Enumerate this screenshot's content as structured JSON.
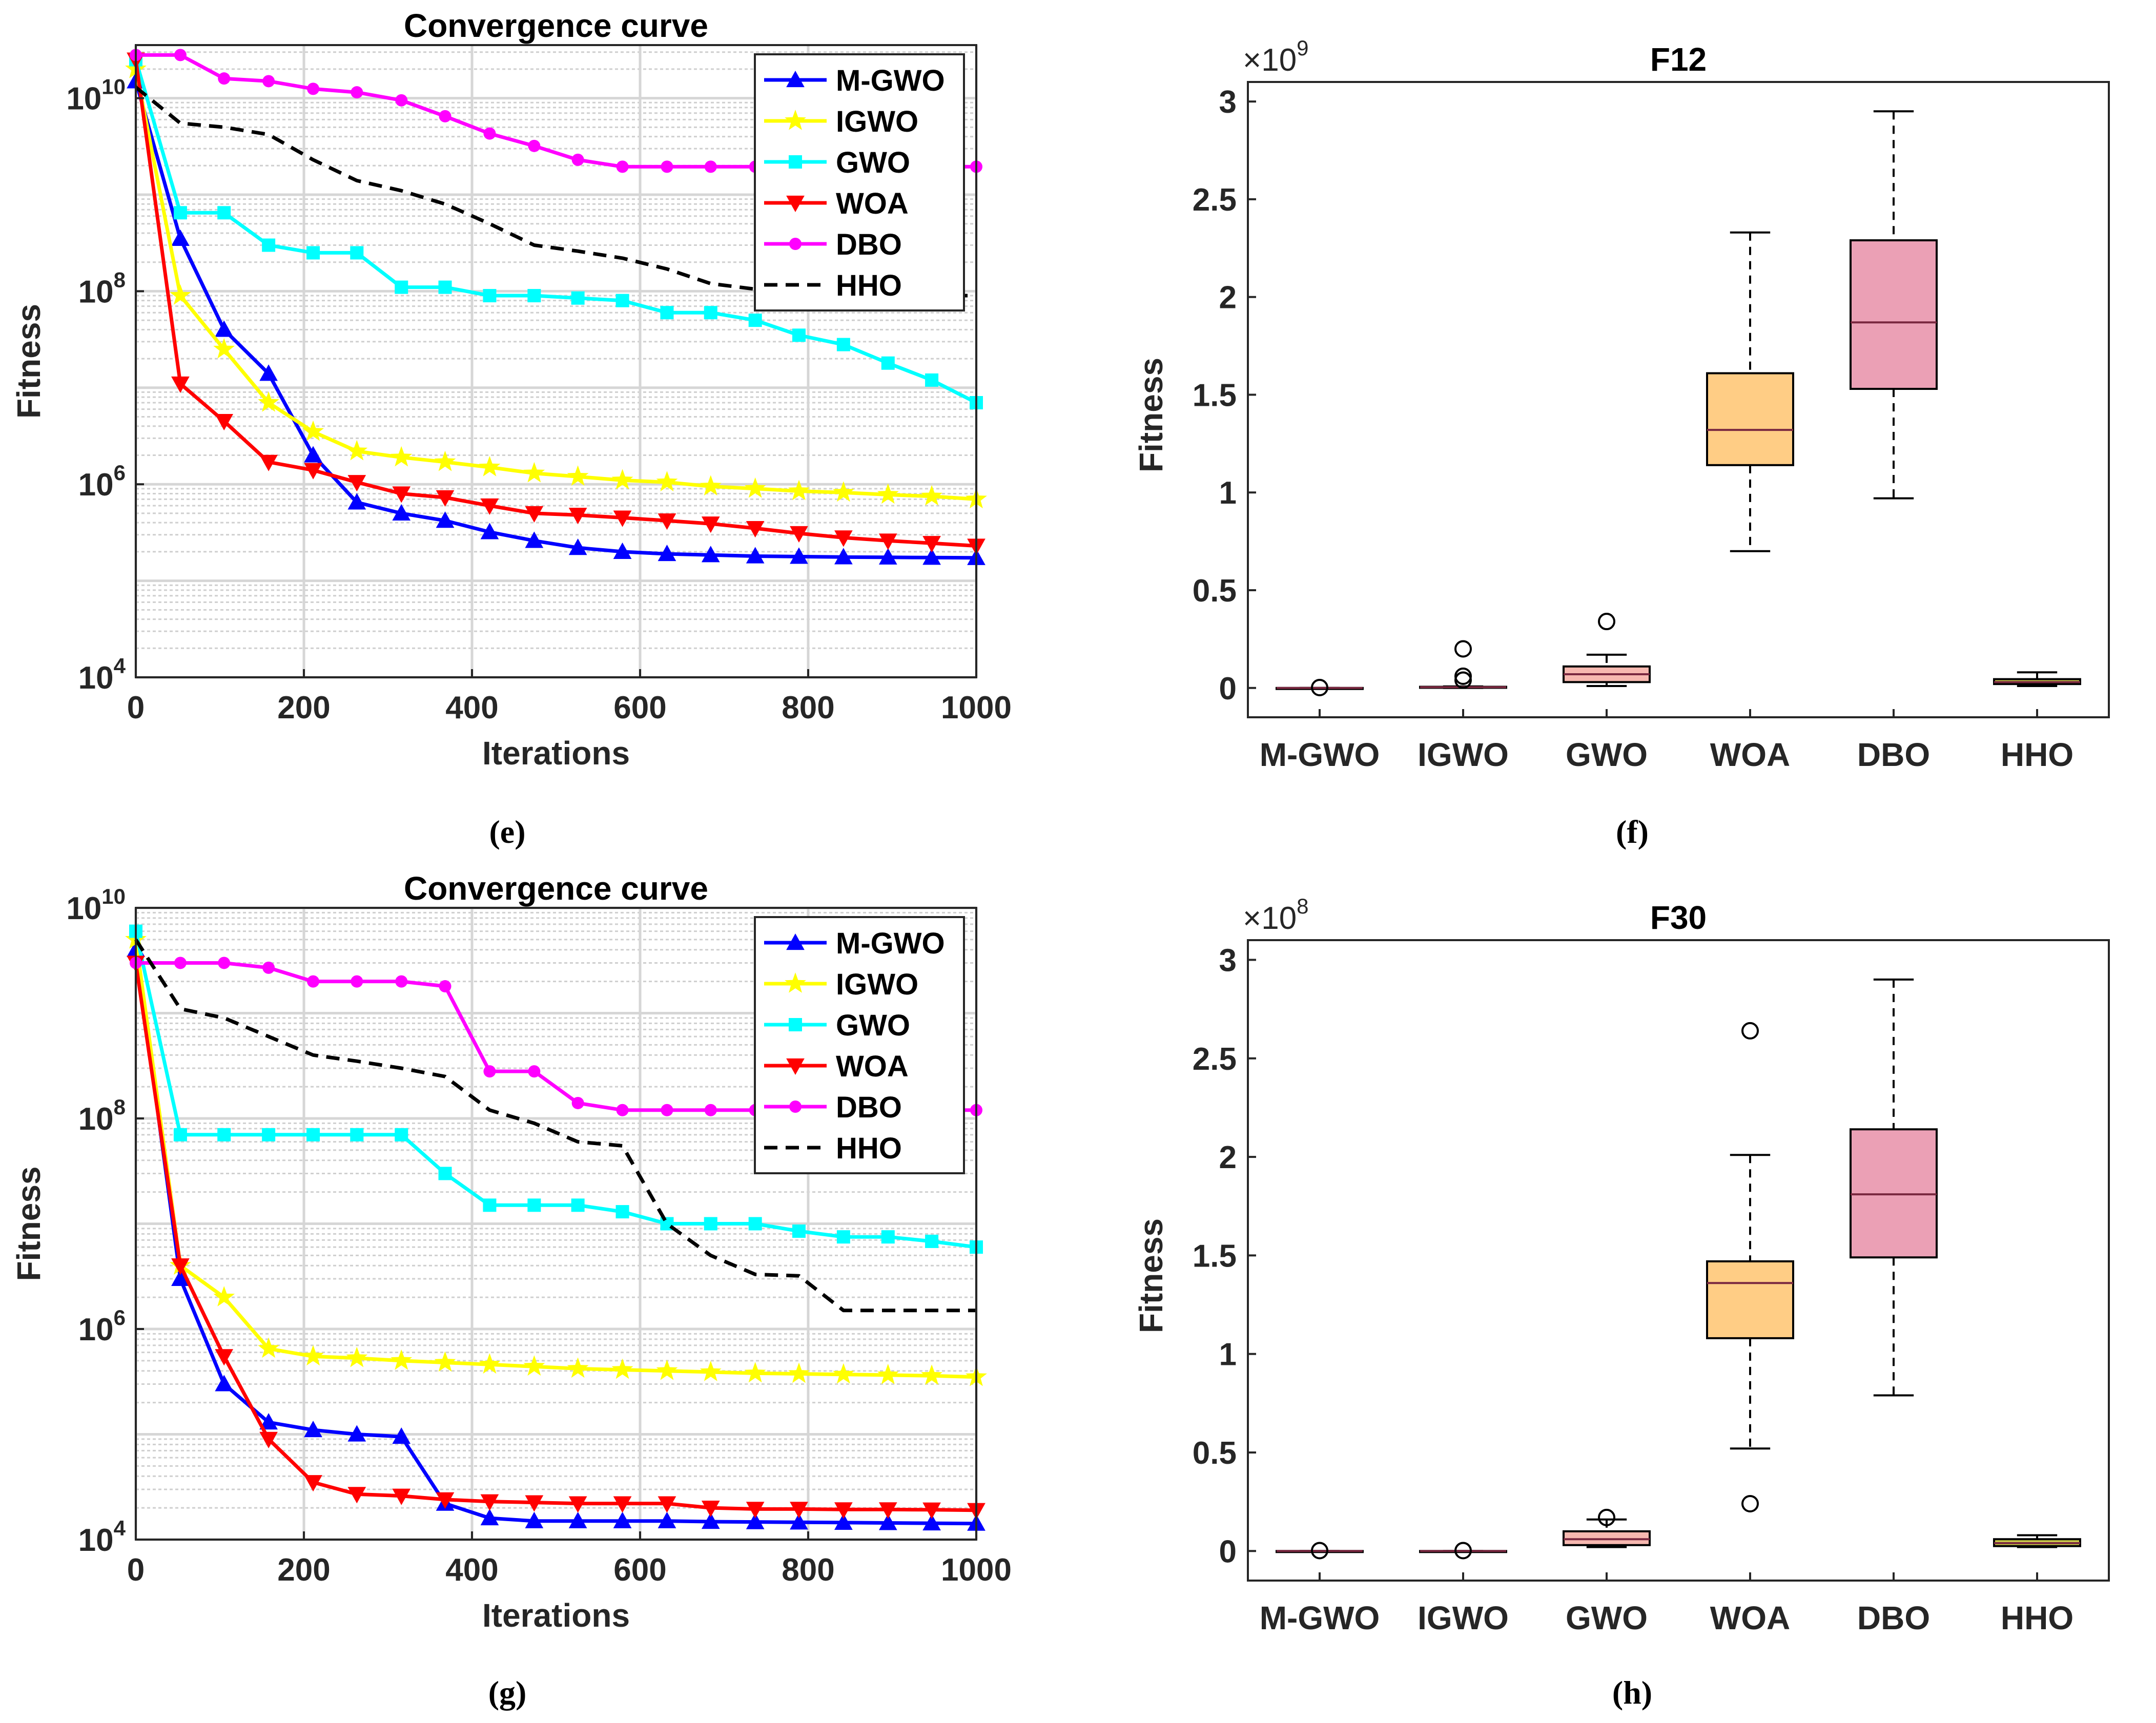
{
  "colors": {
    "M-GWO": "#0000ff",
    "IGWO": "#ffff00",
    "GWO": "#00ffff",
    "WOA": "#ff0000",
    "DBO": "#ff00ff",
    "HHO": "#000000",
    "box_WOA": "#ffcd85",
    "box_DBO": "#eba0b5",
    "box_GWO": "#f7b8b0",
    "box_HHO": "#cccc4a",
    "box_default": "#ffffff"
  },
  "chart_data": [
    {
      "id": "e",
      "type": "line",
      "title": "Convergence curve",
      "xlabel": "Iterations",
      "ylabel": "Fitness",
      "yscale": "log",
      "xlim": [
        0,
        1000
      ],
      "ylim_exp": [
        4,
        10.55
      ],
      "xticks": [
        0,
        200,
        400,
        600,
        800,
        1000
      ],
      "yticks_exp": [
        4,
        6,
        8,
        10
      ],
      "grid": true,
      "legend_position": "top-right",
      "caption": "(e)",
      "series": [
        {
          "name": "M-GWO",
          "marker": "triangle-up",
          "x": [
            0,
            53,
            105,
            158,
            211,
            263,
            316,
            368,
            421,
            474,
            526,
            579,
            632,
            684,
            737,
            789,
            842,
            895,
            947,
            1000
          ],
          "y": [
            15000000000.0,
            350000000.0,
            40000000.0,
            14000000.0,
            2000000.0,
            650000.0,
            500000.0,
            420000.0,
            320000.0,
            260000.0,
            220000.0,
            200000.0,
            190000.0,
            185000.0,
            180000.0,
            178000.0,
            176000.0,
            175000.0,
            174000.0,
            173000.0
          ]
        },
        {
          "name": "IGWO",
          "marker": "star",
          "x": [
            0,
            53,
            105,
            158,
            211,
            263,
            316,
            368,
            421,
            474,
            526,
            579,
            632,
            684,
            737,
            789,
            842,
            895,
            947,
            1000
          ],
          "y": [
            20000000000.0,
            90000000.0,
            25000000.0,
            7000000.0,
            3500000.0,
            2200000.0,
            1900000.0,
            1700000.0,
            1500000.0,
            1300000.0,
            1200000.0,
            1100000.0,
            1050000.0,
            950000.0,
            900000.0,
            850000.0,
            820000.0,
            780000.0,
            750000.0,
            700000.0
          ]
        },
        {
          "name": "GWO",
          "marker": "square",
          "x": [
            0,
            53,
            105,
            158,
            211,
            263,
            316,
            368,
            421,
            474,
            526,
            579,
            632,
            684,
            737,
            789,
            842,
            895,
            947,
            1000
          ],
          "y": [
            25000000000.0,
            650000000.0,
            650000000.0,
            300000000.0,
            250000000.0,
            250000000.0,
            110000000.0,
            110000000.0,
            90000000.0,
            90000000.0,
            85000000.0,
            80000000.0,
            60000000.0,
            60000000.0,
            50000000.0,
            35000000.0,
            28000000.0,
            18000000.0,
            12000000.0,
            7000000.0
          ]
        },
        {
          "name": "WOA",
          "marker": "triangle-down",
          "x": [
            0,
            53,
            105,
            158,
            211,
            263,
            316,
            368,
            421,
            474,
            526,
            579,
            632,
            684,
            737,
            789,
            842,
            895,
            947,
            1000
          ],
          "y": [
            25000000000.0,
            11000000.0,
            4500000.0,
            1700000.0,
            1400000.0,
            1050000.0,
            800000.0,
            730000.0,
            600000.0,
            500000.0,
            480000.0,
            450000.0,
            420000.0,
            390000.0,
            350000.0,
            310000.0,
            280000.0,
            260000.0,
            245000.0,
            230000.0
          ]
        },
        {
          "name": "DBO",
          "marker": "circle",
          "x": [
            0,
            53,
            105,
            158,
            211,
            263,
            316,
            368,
            421,
            474,
            526,
            579,
            632,
            684,
            737,
            789,
            842,
            895,
            947,
            1000
          ],
          "y": [
            28000000000.0,
            28000000000.0,
            16000000000.0,
            15000000000.0,
            12500000000.0,
            11500000000.0,
            9500000000.0,
            6500000000.0,
            4300000000.0,
            3200000000.0,
            2300000000.0,
            1950000000.0,
            1950000000.0,
            1950000000.0,
            1950000000.0,
            1950000000.0,
            1950000000.0,
            1950000000.0,
            1950000000.0,
            1950000000.0
          ]
        },
        {
          "name": "HHO",
          "marker": "none",
          "dashed": true,
          "x": [
            0,
            53,
            105,
            158,
            211,
            263,
            316,
            368,
            421,
            474,
            526,
            579,
            632,
            684,
            737,
            789,
            842,
            895,
            947,
            1000
          ],
          "y": [
            13000000000.0,
            5500000000.0,
            5000000000.0,
            4200000000.0,
            2300000000.0,
            1400000000.0,
            1100000000.0,
            800000000.0,
            500000000.0,
            300000000.0,
            260000000.0,
            220000000.0,
            170000000.0,
            120000000.0,
            105000000.0,
            90000000.0,
            90000000.0,
            90000000.0,
            90000000.0,
            90000000.0
          ]
        }
      ]
    },
    {
      "id": "f",
      "type": "box",
      "title": "F12",
      "ylabel": "Fitness",
      "multiplier": "×10",
      "multiplier_exp": "9",
      "ylim": [
        -0.15,
        3.1
      ],
      "yticks": [
        0,
        0.5,
        1,
        1.5,
        2,
        2.5,
        3
      ],
      "ytick_labels": [
        "0",
        "0.5",
        "1",
        "1.5",
        "2",
        "2.5",
        "3"
      ],
      "categories": [
        "M-GWO",
        "IGWO",
        "GWO",
        "WOA",
        "DBO",
        "HHO"
      ],
      "caption": "(f)",
      "boxes": [
        {
          "min": 0,
          "q1": 0,
          "median": 0,
          "q3": 0,
          "max": 0,
          "outliers": [
            0.002
          ]
        },
        {
          "min": 0,
          "q1": 0.002,
          "median": 0.004,
          "q3": 0.006,
          "max": 0.008,
          "outliers": [
            0.2,
            0.06,
            0.04
          ]
        },
        {
          "min": 0.01,
          "q1": 0.03,
          "median": 0.07,
          "q3": 0.11,
          "max": 0.17,
          "outliers": [
            0.34
          ]
        },
        {
          "min": 0.7,
          "q1": 1.14,
          "median": 1.32,
          "q3": 1.61,
          "max": 2.33,
          "outliers": []
        },
        {
          "min": 0.97,
          "q1": 1.53,
          "median": 1.87,
          "q3": 2.29,
          "max": 2.95,
          "outliers": []
        },
        {
          "min": 0.01,
          "q1": 0.02,
          "median": 0.03,
          "q3": 0.045,
          "max": 0.08,
          "outliers": []
        }
      ]
    },
    {
      "id": "g",
      "type": "line",
      "title": "Convergence curve",
      "xlabel": "Iterations",
      "ylabel": "Fitness",
      "yscale": "log",
      "xlim": [
        0,
        1000
      ],
      "ylim_exp": [
        4,
        10
      ],
      "xticks": [
        0,
        200,
        400,
        600,
        800,
        1000
      ],
      "yticks_exp": [
        4,
        6,
        8,
        10
      ],
      "grid": true,
      "legend_position": "top-right",
      "caption": "(g)",
      "series": [
        {
          "name": "M-GWO",
          "marker": "triangle-up",
          "x": [
            0,
            53,
            105,
            158,
            211,
            263,
            316,
            368,
            421,
            474,
            526,
            579,
            632,
            684,
            737,
            789,
            842,
            895,
            947,
            1000
          ],
          "y": [
            4000000000.0,
            3000000.0,
            300000.0,
            130000.0,
            110000.0,
            100000.0,
            95000.0,
            22000.0,
            16000.0,
            15000.0,
            15000.0,
            15000.0,
            15000.0,
            14800.0,
            14700.0,
            14600.0,
            14500.0,
            14400.0,
            14300.0,
            14200.0
          ]
        },
        {
          "name": "IGWO",
          "marker": "star",
          "x": [
            0,
            53,
            105,
            158,
            211,
            263,
            316,
            368,
            421,
            474,
            526,
            579,
            632,
            684,
            737,
            789,
            842,
            895,
            947,
            1000
          ],
          "y": [
            5000000000.0,
            4000000.0,
            2000000.0,
            650000.0,
            550000.0,
            530000.0,
            500000.0,
            480000.0,
            460000.0,
            440000.0,
            420000.0,
            410000.0,
            400000.0,
            390000.0,
            380000.0,
            375000.0,
            370000.0,
            365000.0,
            360000.0,
            350000.0
          ]
        },
        {
          "name": "GWO",
          "marker": "square",
          "x": [
            0,
            53,
            105,
            158,
            211,
            263,
            316,
            368,
            421,
            474,
            526,
            579,
            632,
            684,
            737,
            789,
            842,
            895,
            947,
            1000
          ],
          "y": [
            6000000000.0,
            70000000.0,
            70000000.0,
            70000000.0,
            70000000.0,
            70000000.0,
            70000000.0,
            30000000.0,
            15000000.0,
            15000000.0,
            15000000.0,
            13000000.0,
            10000000.0,
            10000000.0,
            10000000.0,
            8500000.0,
            7500000.0,
            7500000.0,
            6800000.0,
            6000000.0
          ]
        },
        {
          "name": "WOA",
          "marker": "triangle-down",
          "x": [
            0,
            53,
            105,
            158,
            211,
            263,
            316,
            368,
            421,
            474,
            526,
            579,
            632,
            684,
            737,
            789,
            842,
            895,
            947,
            1000
          ],
          "y": [
            3000000000.0,
            4000000.0,
            550000.0,
            90000.0,
            35000.0,
            27000.0,
            26000.0,
            24000.0,
            23000.0,
            22500.0,
            22000.0,
            22000.0,
            22000.0,
            20000.0,
            19500.0,
            19500.0,
            19300.0,
            19300.0,
            19200.0,
            19000.0
          ]
        },
        {
          "name": "DBO",
          "marker": "circle",
          "x": [
            0,
            53,
            105,
            158,
            211,
            263,
            316,
            368,
            421,
            474,
            526,
            579,
            632,
            684,
            737,
            789,
            842,
            895,
            947,
            1000
          ],
          "y": [
            3000000000.0,
            3000000000.0,
            3000000000.0,
            2700000000.0,
            2000000000.0,
            2000000000.0,
            2000000000.0,
            1800000000.0,
            280000000.0,
            280000000.0,
            140000000.0,
            120000000.0,
            120000000.0,
            120000000.0,
            120000000.0,
            120000000.0,
            120000000.0,
            120000000.0,
            120000000.0,
            120000000.0
          ]
        },
        {
          "name": "HHO",
          "marker": "none",
          "dashed": true,
          "x": [
            0,
            53,
            105,
            158,
            211,
            263,
            316,
            368,
            421,
            474,
            526,
            579,
            632,
            684,
            737,
            789,
            842,
            895,
            947,
            1000
          ],
          "y": [
            5000000000.0,
            1100000000.0,
            900000000.0,
            600000000.0,
            400000000.0,
            350000000.0,
            300000000.0,
            250000000.0,
            120000000.0,
            90000000.0,
            60000000.0,
            55000000.0,
            10000000.0,
            5000000.0,
            3300000.0,
            3200000.0,
            1500000.0,
            1500000.0,
            1500000.0,
            1500000.0
          ]
        }
      ]
    },
    {
      "id": "h",
      "type": "box",
      "title": "F30",
      "ylabel": "Fitness",
      "multiplier": "×10",
      "multiplier_exp": "8",
      "ylim": [
        -0.15,
        3.1
      ],
      "yticks": [
        0,
        0.5,
        1,
        1.5,
        2,
        2.5,
        3
      ],
      "ytick_labels": [
        "0",
        "0.5",
        "1",
        "1.5",
        "2",
        "2.5",
        "3"
      ],
      "categories": [
        "M-GWO",
        "IGWO",
        "GWO",
        "WOA",
        "DBO",
        "HHO"
      ],
      "caption": "(h)",
      "boxes": [
        {
          "min": 0,
          "q1": 0,
          "median": 0,
          "q3": 0,
          "max": 0,
          "outliers": [
            0.002
          ]
        },
        {
          "min": 0,
          "q1": 0,
          "median": 0,
          "q3": 0,
          "max": 0,
          "outliers": [
            0.002
          ]
        },
        {
          "min": 0.02,
          "q1": 0.03,
          "median": 0.06,
          "q3": 0.1,
          "max": 0.16,
          "outliers": [
            0.17
          ]
        },
        {
          "min": 0.52,
          "q1": 1.08,
          "median": 1.36,
          "q3": 1.47,
          "max": 2.01,
          "outliers": [
            2.64,
            0.24
          ]
        },
        {
          "min": 0.79,
          "q1": 1.49,
          "median": 1.81,
          "q3": 2.14,
          "max": 2.9,
          "outliers": []
        },
        {
          "min": 0.02,
          "q1": 0.025,
          "median": 0.04,
          "q3": 0.06,
          "max": 0.08,
          "outliers": []
        }
      ]
    }
  ]
}
